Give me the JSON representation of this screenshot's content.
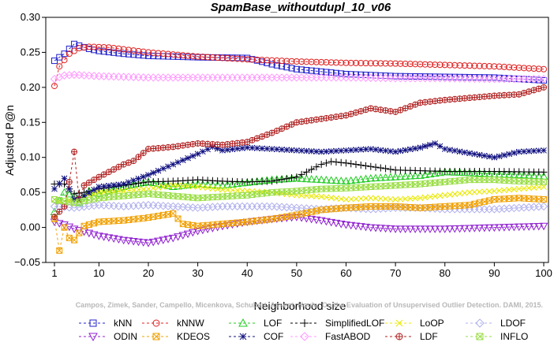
{
  "chart_data": {
    "type": "line",
    "title": "SpamBase_withoutdupl_10_v06",
    "xlabel": "Neighborhood size",
    "ylabel": "Adjusted P@n",
    "xlim": [
      1,
      100
    ],
    "ylim": [
      -0.05,
      0.3
    ],
    "xticks": [
      "1",
      "10",
      "20",
      "30",
      "40",
      "50",
      "60",
      "70",
      "80",
      "90",
      "100"
    ],
    "yticks": [
      "−0.05",
      "0.00",
      "0.05",
      "0.10",
      "0.15",
      "0.20",
      "0.25",
      "0.30"
    ],
    "grid": false,
    "legend_position": "bottom",
    "credit": "Campos, Zimek, Sander, Campello, Micenkova, Schubert, Assent, Houle: On the Evaluation of Unsupervised Outlier Detection. DAMI, 2015.",
    "series": [
      {
        "name": "kNN",
        "color": "#2020cc",
        "marker": "square",
        "dash": "3,3",
        "x": [
          1,
          3,
          5,
          8,
          10,
          15,
          20,
          30,
          40,
          45,
          50,
          60,
          70,
          80,
          90,
          100
        ],
        "y": [
          0.238,
          0.248,
          0.262,
          0.255,
          0.252,
          0.248,
          0.245,
          0.243,
          0.242,
          0.233,
          0.226,
          0.219,
          0.216,
          0.215,
          0.214,
          0.21
        ]
      },
      {
        "name": "kNNW",
        "color": "#e02020",
        "marker": "circle",
        "dash": "3,3",
        "x": [
          1,
          2,
          4,
          6,
          8,
          12,
          20,
          30,
          40,
          50,
          60,
          70,
          80,
          90,
          100
        ],
        "y": [
          0.202,
          0.23,
          0.248,
          0.256,
          0.258,
          0.257,
          0.25,
          0.244,
          0.24,
          0.237,
          0.235,
          0.234,
          0.232,
          0.23,
          0.226
        ]
      },
      {
        "name": "LOF",
        "color": "#20cc20",
        "marker": "triangle",
        "dash": "3,3",
        "x": [
          1,
          2,
          3,
          5,
          6,
          8,
          10,
          15,
          20,
          25,
          30,
          35,
          40,
          45,
          50,
          55,
          60,
          65,
          70,
          75,
          80,
          85,
          90,
          95,
          100
        ],
        "y": [
          0.022,
          0.038,
          0.05,
          0.045,
          0.035,
          0.052,
          0.048,
          0.058,
          0.065,
          0.058,
          0.062,
          0.06,
          0.064,
          0.068,
          0.07,
          0.068,
          0.066,
          0.07,
          0.072,
          0.074,
          0.079,
          0.078,
          0.076,
          0.075,
          0.073
        ]
      },
      {
        "name": "SimplifiedLOF",
        "color": "#000000",
        "marker": "plus",
        "dash": "3,3",
        "x": [
          1,
          3,
          5,
          7,
          10,
          15,
          20,
          25,
          30,
          35,
          40,
          45,
          50,
          55,
          57,
          60,
          65,
          70,
          80,
          90,
          100
        ],
        "y": [
          0.062,
          0.062,
          0.048,
          0.05,
          0.055,
          0.06,
          0.065,
          0.066,
          0.068,
          0.066,
          0.065,
          0.066,
          0.072,
          0.09,
          0.094,
          0.092,
          0.087,
          0.082,
          0.08,
          0.08,
          0.079
        ]
      },
      {
        "name": "LoOP",
        "color": "#e8e800",
        "marker": "cross",
        "dash": "3,3",
        "x": [
          1,
          5,
          10,
          15,
          20,
          25,
          30,
          35,
          40,
          45,
          50,
          55,
          60,
          65,
          70,
          75,
          80,
          85,
          90,
          95,
          100
        ],
        "y": [
          0.035,
          0.04,
          0.05,
          0.052,
          0.055,
          0.06,
          0.058,
          0.054,
          0.052,
          0.05,
          0.046,
          0.044,
          0.04,
          0.042,
          0.04,
          0.042,
          0.046,
          0.05,
          0.052,
          0.055,
          0.058
        ]
      },
      {
        "name": "LDOF",
        "color": "#b0b0ee",
        "marker": "diamond",
        "dash": "3,3",
        "x": [
          1,
          5,
          10,
          15,
          20,
          25,
          30,
          35,
          40,
          45,
          50,
          55,
          60,
          65,
          70,
          75,
          80,
          85,
          90,
          95,
          100
        ],
        "y": [
          0.03,
          0.028,
          0.032,
          0.03,
          0.032,
          0.03,
          0.028,
          0.03,
          0.03,
          0.03,
          0.028,
          0.026,
          0.028,
          0.026,
          0.028,
          0.028,
          0.026,
          0.026,
          0.026,
          0.028,
          0.03
        ]
      },
      {
        "name": "ODIN",
        "color": "#9020d0",
        "marker": "triangle-down",
        "dash": "3,3",
        "x": [
          1,
          3,
          5,
          8,
          10,
          15,
          20,
          25,
          30,
          35,
          40,
          45,
          50,
          55,
          60,
          65,
          70,
          75,
          80,
          85,
          90,
          95,
          100
        ],
        "y": [
          0.008,
          0.004,
          -0.002,
          -0.008,
          -0.012,
          -0.018,
          -0.022,
          -0.015,
          -0.005,
          0.002,
          0.008,
          0.012,
          0.015,
          0.01,
          0.004,
          0.0,
          -0.002,
          -0.002,
          -0.002,
          -0.001,
          0.0,
          0.001,
          0.002
        ]
      },
      {
        "name": "KDEOS",
        "color": "#f0a000",
        "marker": "box-x",
        "dash": "3,3",
        "x": [
          1,
          2,
          3,
          4,
          5,
          7,
          10,
          15,
          20,
          25,
          27,
          30,
          35,
          40,
          45,
          50,
          55,
          60,
          65,
          70,
          75,
          80,
          85,
          90,
          95,
          100
        ],
        "y": [
          0.012,
          -0.033,
          0.0,
          -0.015,
          -0.018,
          0.002,
          0.008,
          0.01,
          0.014,
          0.02,
          0.005,
          0.002,
          0.005,
          0.008,
          0.012,
          0.018,
          0.025,
          0.028,
          0.03,
          0.03,
          0.028,
          0.03,
          0.032,
          0.04,
          0.042,
          0.04
        ]
      },
      {
        "name": "COF",
        "color": "#101080",
        "marker": "star",
        "dash": "3,3",
        "x": [
          1,
          3,
          5,
          7,
          10,
          15,
          20,
          25,
          30,
          33,
          35,
          40,
          45,
          50,
          55,
          60,
          65,
          70,
          75,
          78,
          80,
          85,
          90,
          95,
          100
        ],
        "y": [
          0.055,
          0.07,
          0.04,
          0.045,
          0.058,
          0.062,
          0.075,
          0.09,
          0.105,
          0.115,
          0.11,
          0.114,
          0.112,
          0.11,
          0.108,
          0.11,
          0.112,
          0.108,
          0.114,
          0.12,
          0.112,
          0.106,
          0.1,
          0.108,
          0.11
        ]
      },
      {
        "name": "FastABOD",
        "color": "#ff99ff",
        "marker": "diamond",
        "dash": "3,3",
        "x": [
          1,
          3,
          5,
          10,
          20,
          30,
          40,
          50,
          60,
          70,
          80,
          90,
          100
        ],
        "y": [
          0.212,
          0.217,
          0.218,
          0.216,
          0.214,
          0.214,
          0.214,
          0.214,
          0.214,
          0.213,
          0.213,
          0.212,
          0.212
        ]
      },
      {
        "name": "LDF",
        "color": "#b02020",
        "marker": "circle-plus",
        "dash": "3,3",
        "x": [
          1,
          3,
          4,
          5,
          6,
          7,
          10,
          15,
          17,
          20,
          25,
          30,
          35,
          40,
          45,
          50,
          55,
          60,
          65,
          70,
          75,
          80,
          85,
          90,
          95,
          100
        ],
        "y": [
          0.015,
          0.03,
          0.065,
          0.108,
          0.04,
          0.06,
          0.072,
          0.09,
          0.095,
          0.112,
          0.115,
          0.12,
          0.118,
          0.122,
          0.135,
          0.15,
          0.155,
          0.16,
          0.17,
          0.165,
          0.178,
          0.182,
          0.185,
          0.188,
          0.19,
          0.2
        ]
      },
      {
        "name": "INFLO",
        "color": "#99dd44",
        "marker": "box-x",
        "dash": "3,3",
        "x": [
          1,
          5,
          10,
          15,
          20,
          25,
          30,
          35,
          40,
          45,
          50,
          55,
          60,
          65,
          70,
          75,
          80,
          85,
          90,
          95,
          100
        ],
        "y": [
          0.04,
          0.035,
          0.042,
          0.045,
          0.048,
          0.045,
          0.042,
          0.044,
          0.046,
          0.05,
          0.052,
          0.055,
          0.056,
          0.058,
          0.06,
          0.062,
          0.065,
          0.068,
          0.068,
          0.066,
          0.065
        ]
      }
    ]
  }
}
